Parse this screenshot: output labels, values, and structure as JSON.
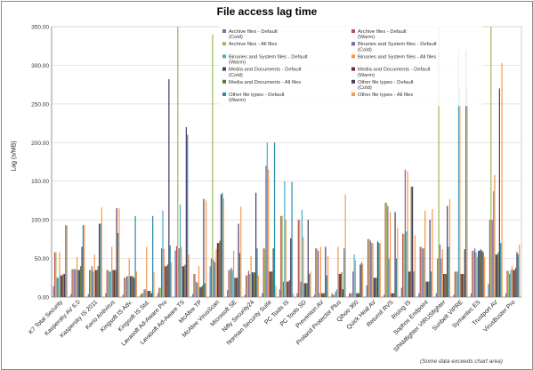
{
  "chart_data": {
    "type": "bar",
    "title": "File access lag time",
    "ylabel": "Lag (s/MB)",
    "xlabel": "",
    "ylim": [
      0,
      350
    ],
    "yticks": [
      "0.00",
      "50.00",
      "100.00",
      "150.00",
      "200.00",
      "250.00",
      "300.00",
      "350.00"
    ],
    "grid": true,
    "legend_position": "top-center",
    "note": "(Some data exceeds chart area)",
    "categories": [
      "K7 Total Security",
      "Kaspersky AV 6.0",
      "Kaspersky IS 2011",
      "Kerio Antivirus",
      "Kingsoft IS Adv.",
      "Kingsoft IS Std.",
      "Lavasoft Ad-Aware Pro",
      "Lavasoft Ad-Aware TS",
      "McAfee TP",
      "McAfee VirusScan",
      "Microsoft SE",
      "Nifty Security24",
      "Norman Security Suite",
      "PC Tools IS",
      "PC Tools SD",
      "Preventon AV",
      "Proland Protector Plus",
      "Qihoo 360",
      "Quick Heal AV",
      "Returnil RVS",
      "Rising IS",
      "Sophos Endpoint",
      "SPAMfighter VIRUSfighter",
      "Sunbelt VIPRE",
      "Symantec ES",
      "Trustport AV",
      "VirusBuster Pro"
    ],
    "series": [
      {
        "name": "Archive files - Default (Cold)",
        "color": "#4f81bd",
        "values": [
          14,
          4,
          4,
          5,
          3,
          3,
          5,
          60,
          4,
          40,
          9,
          3,
          5,
          10,
          5,
          3,
          5,
          5,
          15,
          3,
          12,
          5,
          5,
          3,
          5,
          17,
          5
        ]
      },
      {
        "name": "Archive files - Default (Warm)",
        "color": "#c0504d",
        "values": [
          58,
          36,
          35,
          35,
          25,
          5,
          12,
          66,
          30,
          50,
          35,
          28,
          63,
          105,
          100,
          63,
          3,
          5,
          75,
          122,
          82,
          65,
          50,
          33,
          60,
          100,
          34
        ]
      },
      {
        "name": "Archive files - All files",
        "color": "#9bbb59",
        "values": [
          58,
          36,
          35,
          35,
          25,
          5,
          12,
          350,
          30,
          340,
          35,
          28,
          63,
          105,
          100,
          63,
          3,
          5,
          75,
          122,
          82,
          65,
          350,
          33,
          60,
          350,
          34
        ]
      },
      {
        "name": "Binaries and System files - Default (Cold)",
        "color": "#8064a2",
        "values": [
          25,
          36,
          40,
          33,
          27,
          10,
          63,
          63,
          20,
          48,
          38,
          34,
          170,
          20,
          20,
          60,
          7,
          33,
          73,
          118,
          165,
          63,
          68,
          33,
          63,
          100,
          30
        ]
      },
      {
        "name": "Binaries and System files - Default (Warm)",
        "color": "#4bacc6",
        "values": [
          25,
          36,
          33,
          33,
          27,
          10,
          112,
          120,
          18,
          45,
          35,
          30,
          200,
          150,
          113,
          5,
          10,
          55,
          70,
          50,
          85,
          63,
          50,
          320,
          58,
          137,
          35
        ]
      },
      {
        "name": "Binaries and System files - All files",
        "color": "#f79646",
        "values": [
          58,
          52,
          55,
          65,
          50,
          65,
          62,
          65,
          40,
          62,
          60,
          53,
          165,
          100,
          78,
          65,
          65,
          48,
          70,
          110,
          163,
          112,
          62,
          272,
          52,
          158,
          40
        ]
      },
      {
        "name": "Media and Documents - Default (Cold)",
        "color": "#2c4d75",
        "values": [
          28,
          35,
          35,
          35,
          27,
          8,
          40,
          40,
          13,
          70,
          25,
          32,
          33,
          20,
          18,
          5,
          30,
          5,
          25,
          5,
          33,
          20,
          30,
          30,
          60,
          55,
          35
        ]
      },
      {
        "name": "Media and Documents - Default (Warm)",
        "color": "#772c2a",
        "values": [
          28,
          35,
          35,
          35,
          27,
          8,
          40,
          40,
          13,
          70,
          25,
          32,
          33,
          20,
          18,
          5,
          30,
          5,
          25,
          5,
          33,
          20,
          30,
          30,
          60,
          55,
          35
        ]
      },
      {
        "name": "Media and Documents - All files",
        "color": "#5f7530",
        "values": [
          30,
          40,
          40,
          35,
          27,
          8,
          42,
          42,
          15,
          73,
          25,
          32,
          33,
          22,
          18,
          5,
          32,
          5,
          25,
          5,
          143,
          20,
          30,
          30,
          62,
          58,
          38
        ]
      },
      {
        "name": "Other file types - Default (Cold)",
        "color": "#4d3b62",
        "values": [
          30,
          65,
          95,
          115,
          25,
          5,
          282,
          220,
          127,
          133,
          95,
          135,
          63,
          76,
          100,
          65,
          10,
          42,
          72,
          110,
          143,
          100,
          118,
          62,
          60,
          270,
          58
        ]
      },
      {
        "name": "Other file types - Default (Warm)",
        "color": "#2c8ba6",
        "values": [
          93,
          93,
          95,
          83,
          105,
          105,
          67,
          210,
          18,
          135,
          57,
          63,
          200,
          149,
          30,
          28,
          63,
          45,
          70,
          50,
          33,
          33,
          65,
          320,
          58,
          70,
          55
        ]
      },
      {
        "name": "Other file types - All files",
        "color": "#fa9b4f",
        "values": [
          93,
          93,
          116,
          115,
          33,
          32,
          45,
          55,
          125,
          128,
          117,
          28,
          15,
          5,
          33,
          53,
          133,
          43,
          70,
          90,
          80,
          114,
          127,
          272,
          52,
          303,
          68
        ]
      }
    ]
  }
}
